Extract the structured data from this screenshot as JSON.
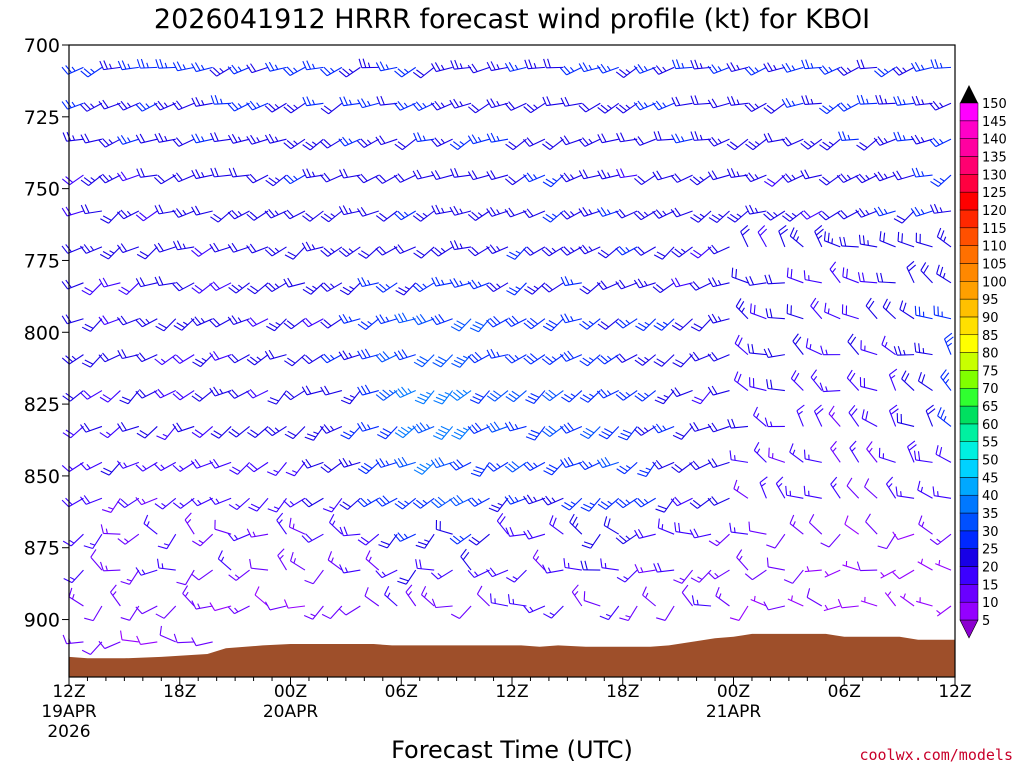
{
  "chart_data": {
    "type": "wind-barb-profile",
    "title": "2026041912 HRRR forecast wind profile (kt) for KBOI",
    "xlabel": "Forecast Time (UTC)",
    "ylabel": "",
    "ylim": [
      920,
      700
    ],
    "xlim_hours": [
      0,
      48
    ],
    "y_ticks": [
      700,
      725,
      750,
      775,
      800,
      825,
      850,
      875,
      900
    ],
    "x_ticks": [
      {
        "hour": 0,
        "label": "12Z",
        "date": "19APR",
        "year": "2026"
      },
      {
        "hour": 6,
        "label": "18Z",
        "date": "",
        "year": ""
      },
      {
        "hour": 12,
        "label": "00Z",
        "date": "20APR",
        "year": ""
      },
      {
        "hour": 18,
        "label": "06Z",
        "date": "",
        "year": ""
      },
      {
        "hour": 24,
        "label": "12Z",
        "date": "",
        "year": ""
      },
      {
        "hour": 30,
        "label": "18Z",
        "date": "",
        "year": ""
      },
      {
        "hour": 36,
        "label": "00Z",
        "date": "21APR",
        "year": ""
      },
      {
        "hour": 42,
        "label": "06Z",
        "date": "",
        "year": ""
      },
      {
        "hour": 48,
        "label": "12Z",
        "date": "",
        "year": ""
      }
    ],
    "colorbar": {
      "levels": [
        5,
        10,
        15,
        20,
        25,
        30,
        35,
        40,
        45,
        50,
        55,
        60,
        65,
        70,
        75,
        80,
        85,
        90,
        95,
        100,
        105,
        110,
        115,
        120,
        125,
        130,
        135,
        140,
        145,
        150
      ],
      "colors": [
        "#9400ff",
        "#6a00ff",
        "#3c00ff",
        "#1800e6",
        "#0028ff",
        "#0050ff",
        "#0078ff",
        "#00a8ff",
        "#00d2ff",
        "#00f0e0",
        "#00f0a0",
        "#00e060",
        "#30ff30",
        "#80ff00",
        "#c8ff00",
        "#ffff00",
        "#ffe000",
        "#ffc000",
        "#ffa000",
        "#ff8800",
        "#ff7000",
        "#ff5000",
        "#ff2800",
        "#ff0000",
        "#ff0040",
        "#ff0070",
        "#ff00a0",
        "#ff00c8",
        "#ff00ff",
        "#e000e0"
      ],
      "cap_top": "#000000",
      "cap_bottom": "#8c00d0"
    },
    "terrain_color": "#9e4f2a",
    "terrain": [
      {
        "h": 0,
        "p": 913
      },
      {
        "h": 1,
        "p": 913.5
      },
      {
        "h": 3,
        "p": 913.5
      },
      {
        "h": 5,
        "p": 913
      },
      {
        "h": 7.5,
        "p": 912
      },
      {
        "h": 8.5,
        "p": 910
      },
      {
        "h": 10.5,
        "p": 909
      },
      {
        "h": 12,
        "p": 908.5
      },
      {
        "h": 16.5,
        "p": 908.5
      },
      {
        "h": 17.5,
        "p": 909
      },
      {
        "h": 24.5,
        "p": 909
      },
      {
        "h": 25.5,
        "p": 909.5
      },
      {
        "h": 26.5,
        "p": 909
      },
      {
        "h": 28,
        "p": 909.5
      },
      {
        "h": 31.5,
        "p": 909.5
      },
      {
        "h": 32.5,
        "p": 909
      },
      {
        "h": 34,
        "p": 907.5
      },
      {
        "h": 35,
        "p": 906.5
      },
      {
        "h": 36,
        "p": 906
      },
      {
        "h": 37,
        "p": 905
      },
      {
        "h": 41,
        "p": 905
      },
      {
        "h": 42,
        "p": 906
      },
      {
        "h": 45,
        "p": 906
      },
      {
        "h": 46,
        "p": 907
      },
      {
        "h": 48,
        "p": 907
      }
    ],
    "wind_barbs": "HRRR hourly wind barbs 700-ground; lower levels 5-25 kt westerly/northwesterly, peaks near 35-45 kt at 800-860 hPa around 06Z-18Z 20APR"
  },
  "credit": "coolwx.com/models"
}
